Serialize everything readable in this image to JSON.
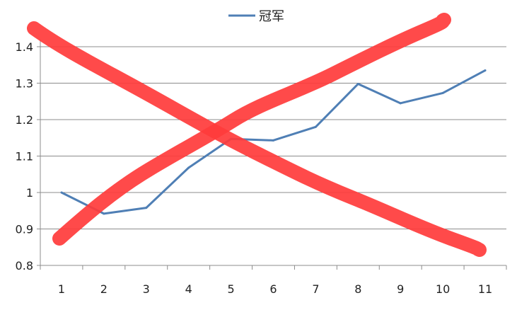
{
  "chart_data": {
    "type": "line",
    "x": [
      1,
      2,
      3,
      4,
      5,
      6,
      7,
      8,
      9,
      10,
      11
    ],
    "series": [
      {
        "name": "冠军",
        "color": "#4f7fb5",
        "values": [
          1.0,
          0.942,
          0.958,
          1.068,
          1.147,
          1.143,
          1.18,
          1.298,
          1.245,
          1.273,
          1.335
        ]
      }
    ],
    "ylim": [
      0.8,
      1.4
    ],
    "yticks": [
      "0.8",
      "0.9",
      "1",
      "1.1",
      "1.2",
      "1.3",
      "1.4"
    ],
    "xticks": [
      "1",
      "2",
      "3",
      "4",
      "5",
      "6",
      "7",
      "8",
      "9",
      "10",
      "11"
    ],
    "grid": true,
    "legend_position": "top-center",
    "overlay_strokes": {
      "color": "#ff3b3b",
      "description": "two hand-drawn red strokes forming a large X over the chart"
    }
  }
}
